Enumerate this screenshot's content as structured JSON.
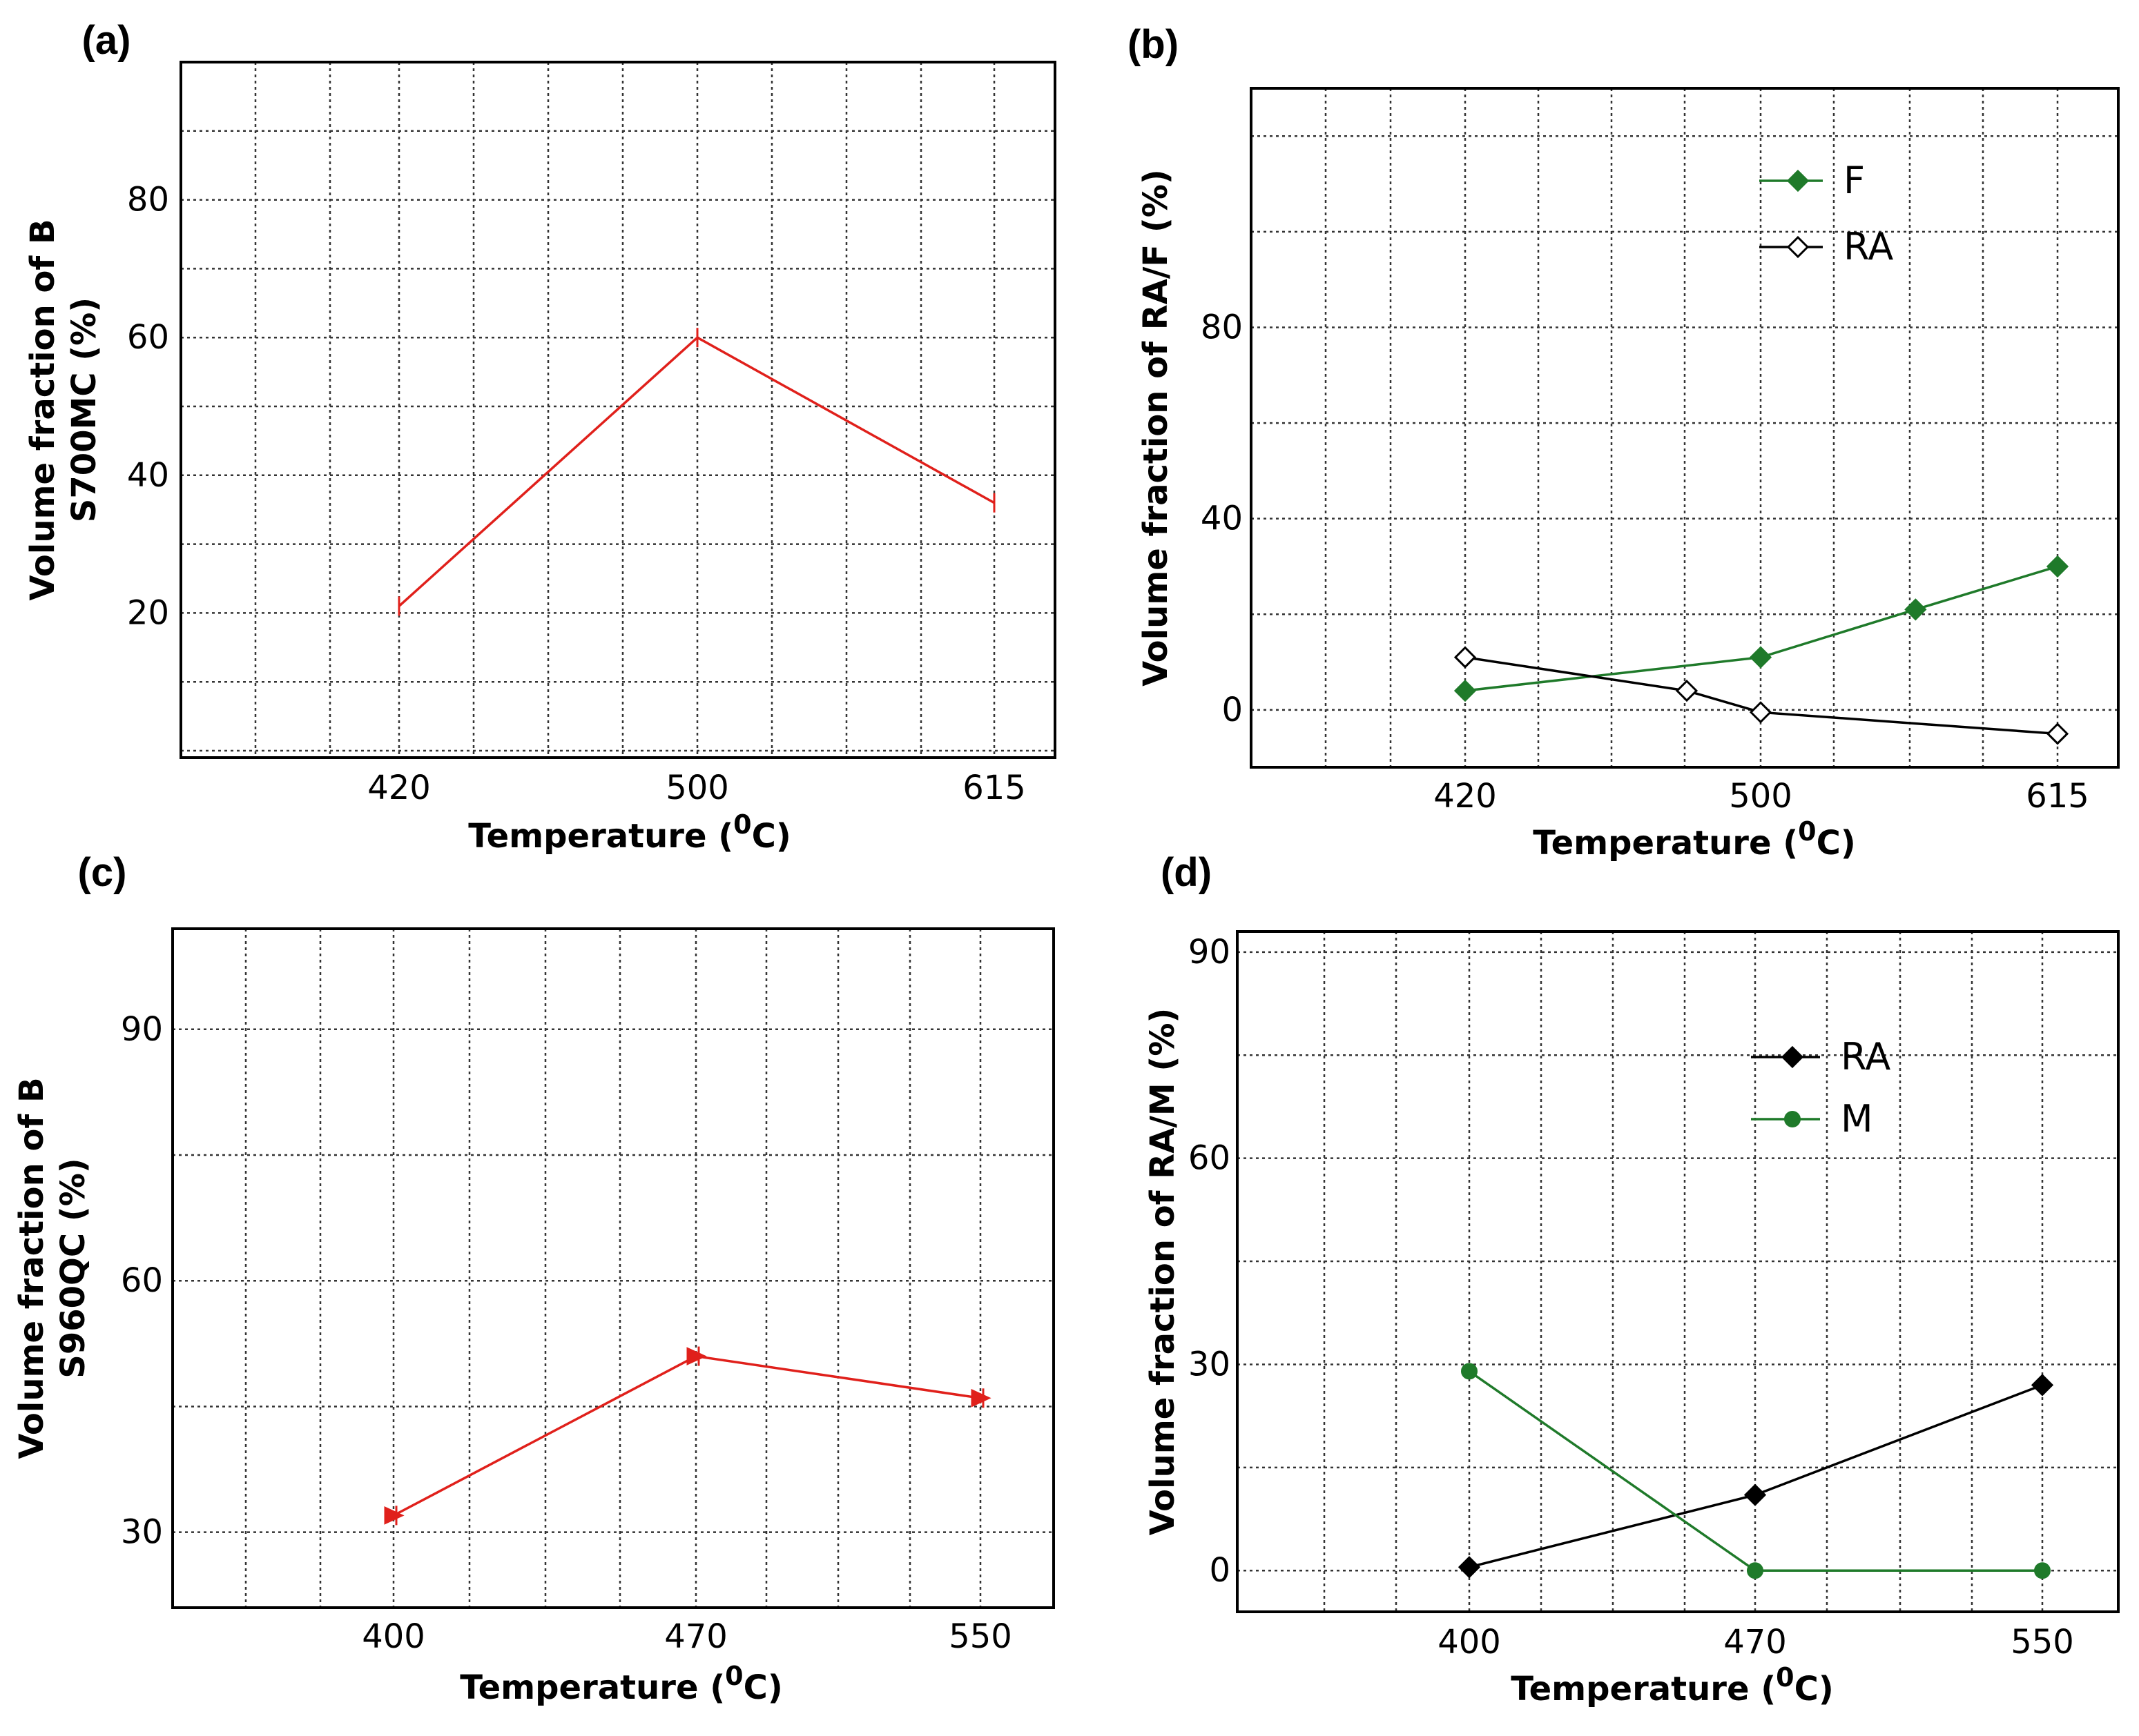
{
  "colors": {
    "red": "#e0201b",
    "green": "#1f7a2a",
    "black": "#000000",
    "grid": "#333333"
  },
  "chart_data": [
    {
      "id": "a",
      "panel_label": "(a)",
      "type": "line",
      "xlabel": "Temperature (",
      "xlabel_sup": "0",
      "xlabel_end": "C)",
      "ylabel_lines": [
        "Volume fraction of B",
        "S700MC (%)"
      ],
      "x_tick_labels": [
        "420",
        "500",
        "615"
      ],
      "y_ticks": [
        20,
        40,
        60,
        80
      ],
      "ylim": [
        -1,
        100
      ],
      "grid": true,
      "legend": false,
      "series": [
        {
          "name": "B",
          "color": "red",
          "marker": "tick",
          "points": [
            {
              "x": "420",
              "y": 21
            },
            {
              "x": "500",
              "y": 60
            },
            {
              "x": "615",
              "y": 36
            }
          ]
        }
      ]
    },
    {
      "id": "b",
      "panel_label": "(b)",
      "type": "line",
      "xlabel": "Temperature (",
      "xlabel_sup": "0",
      "xlabel_end": "C)",
      "ylabel_lines": [
        "Volume fraction of RA/F (%)"
      ],
      "x_tick_labels": [
        "420",
        "500",
        "615"
      ],
      "y_ticks": [
        0,
        40,
        80
      ],
      "ylim": [
        -12,
        130
      ],
      "grid": true,
      "legend": true,
      "legend_position": "top-right",
      "series": [
        {
          "name": "F",
          "color": "green",
          "marker": "diamond-filled",
          "points": [
            {
              "x": 420,
              "y": 4
            },
            {
              "x": 500,
              "y": 11
            },
            {
              "x": 560,
              "y": 21
            },
            {
              "x": 615,
              "y": 30
            }
          ]
        },
        {
          "name": "RA",
          "color": "black",
          "marker": "diamond-open",
          "points": [
            {
              "x": 420,
              "y": 11
            },
            {
              "x": 480,
              "y": 4
            },
            {
              "x": 500,
              "y": -0.5
            },
            {
              "x": 615,
              "y": -5
            }
          ]
        }
      ]
    },
    {
      "id": "c",
      "panel_label": "(c)",
      "type": "line",
      "xlabel": "Temperature (",
      "xlabel_sup": "0",
      "xlabel_end": "C)",
      "ylabel_lines": [
        "Volume fraction of B",
        "S960QC (%)"
      ],
      "x_tick_labels": [
        "400",
        "470",
        "550"
      ],
      "y_ticks": [
        30,
        60,
        90
      ],
      "ylim": [
        21,
        102
      ],
      "grid": true,
      "legend": false,
      "series": [
        {
          "name": "B",
          "color": "red",
          "marker": "triangle",
          "points": [
            {
              "x": 400,
              "y": 32
            },
            {
              "x": 470,
              "y": 51
            },
            {
              "x": 550,
              "y": 46
            }
          ]
        }
      ]
    },
    {
      "id": "d",
      "panel_label": "(d)",
      "type": "line",
      "xlabel": "Temperature (",
      "xlabel_sup": "0",
      "xlabel_end": "C)",
      "ylabel_lines": [
        "Volume fraction of RA/M (%)"
      ],
      "x_tick_labels": [
        "400",
        "470",
        "550"
      ],
      "y_ticks": [
        0,
        30,
        60,
        90
      ],
      "ylim": [
        -6,
        93
      ],
      "grid": true,
      "legend": true,
      "legend_position": "top-right",
      "series": [
        {
          "name": "RA",
          "color": "black",
          "marker": "diamond-filled",
          "points": [
            {
              "x": 400,
              "y": 0.5
            },
            {
              "x": 470,
              "y": 11
            },
            {
              "x": 550,
              "y": 27
            }
          ]
        },
        {
          "name": "M",
          "color": "green",
          "marker": "circle",
          "points": [
            {
              "x": 400,
              "y": 29
            },
            {
              "x": 470,
              "y": 0
            },
            {
              "x": 550,
              "y": 0
            }
          ]
        }
      ]
    }
  ]
}
